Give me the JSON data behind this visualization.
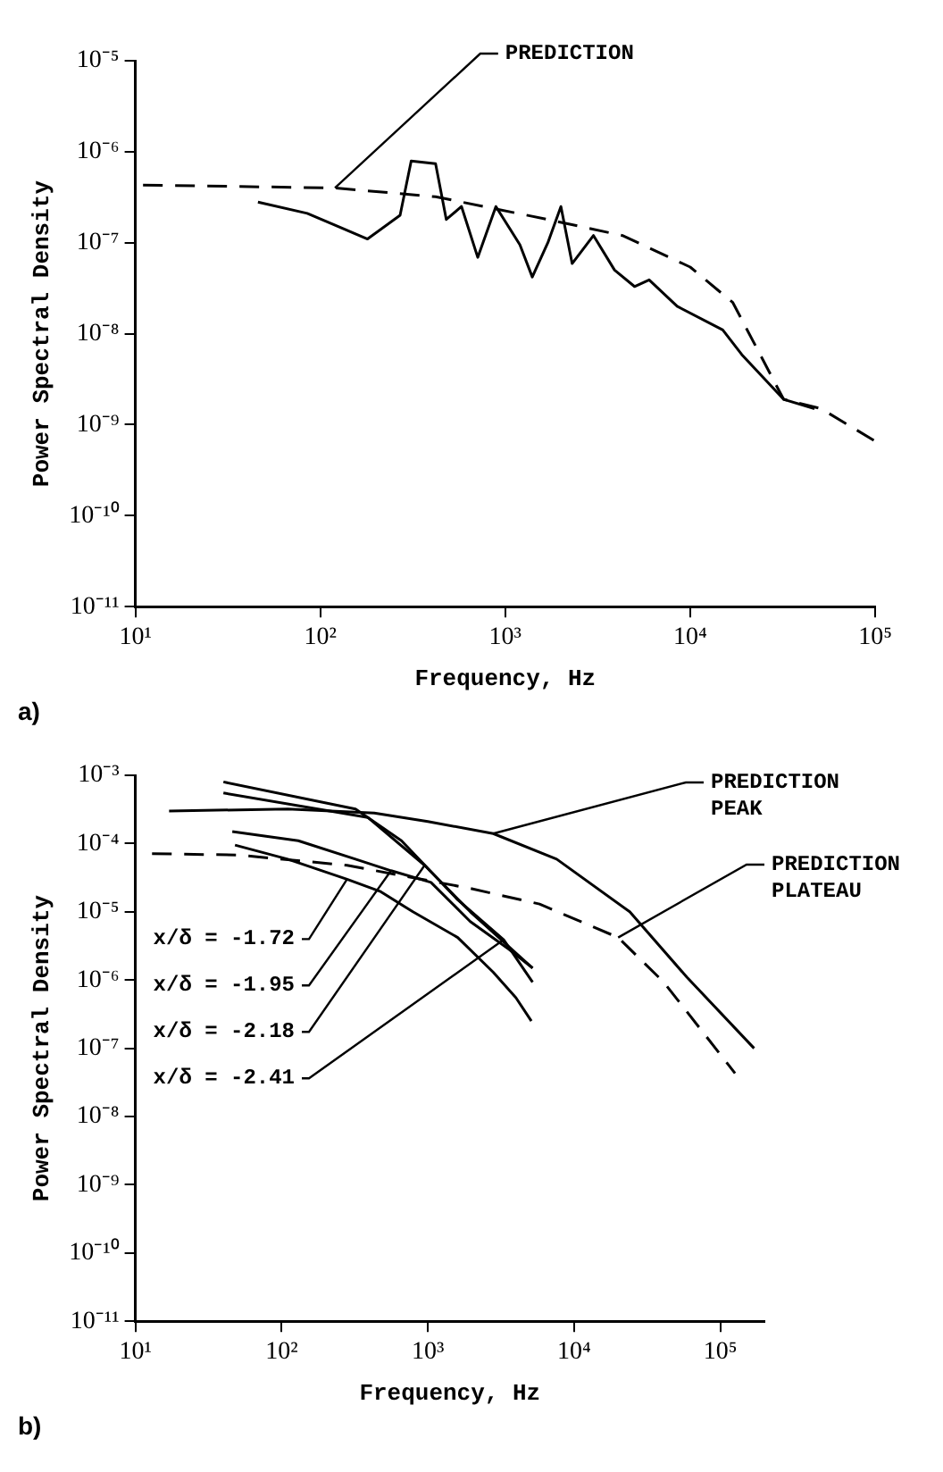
{
  "chart_data": [
    {
      "type": "line",
      "xlabel": "Frequency, Hz",
      "ylabel": "Power Spectral Density",
      "log": "xy",
      "grid": false,
      "legend": false,
      "xlim": [
        10,
        100000
      ],
      "ylim": [
        1e-11,
        1e-05
      ],
      "xticks": [
        {
          "value": 10,
          "label": "10¹"
        },
        {
          "value": 100,
          "label": "10²"
        },
        {
          "value": 1000,
          "label": "10³"
        },
        {
          "value": 10000,
          "label": "10⁴"
        },
        {
          "value": 100000,
          "label": "10⁵"
        }
      ],
      "yticks": [
        {
          "value": 1e-11,
          "label": "10⁻¹¹"
        },
        {
          "value": 1e-10,
          "label": "10⁻¹⁰"
        },
        {
          "value": 1e-09,
          "label": "10⁻⁹"
        },
        {
          "value": 1e-08,
          "label": "10⁻⁸"
        },
        {
          "value": 1e-07,
          "label": "10⁻⁷"
        },
        {
          "value": 1e-06,
          "label": "10⁻⁶"
        },
        {
          "value": 1e-05,
          "label": "10⁻⁵"
        }
      ],
      "series": [
        {
          "color": "#000000",
          "line_style": "solid",
          "x": [
            46,
            85,
            180,
            270,
            310,
            420,
            480,
            580,
            710,
            890,
            1200,
            1400,
            1700,
            2000,
            2300,
            3000,
            3900,
            5000,
            6000,
            8500,
            15000,
            19000,
            32000,
            47000
          ],
          "values": [
            2.8e-07,
            2.1e-07,
            1.1e-07,
            2e-07,
            7.9e-07,
            7.4e-07,
            1.8e-07,
            2.5e-07,
            6.9e-08,
            2.5e-07,
            9.5e-08,
            4.2e-08,
            1e-07,
            2.5e-07,
            5.9e-08,
            1.2e-07,
            5e-08,
            3.3e-08,
            3.9e-08,
            2e-08,
            1.1e-08,
            5.9e-09,
            1.9e-09,
            1.5e-09
          ]
        },
        {
          "name": "PREDICTION",
          "color": "#000000",
          "line_style": "dashed",
          "x": [
            11,
            120,
            420,
            1700,
            4300,
            10000,
            17000,
            32000,
            51000,
            100000
          ],
          "values": [
            4.3e-07,
            4e-07,
            3.2e-07,
            1.8e-07,
            1.2e-07,
            5.4e-08,
            2.2e-08,
            1.9e-09,
            1.5e-09,
            6.6e-10
          ]
        }
      ],
      "annotations": [
        "a)"
      ]
    },
    {
      "type": "line",
      "xlabel": "Frequency, Hz",
      "ylabel": "Power Spectral Density",
      "log": "xy",
      "grid": false,
      "legend": false,
      "xlim": [
        10,
        200000
      ],
      "ylim": [
        1e-11,
        0.001
      ],
      "xticks": [
        {
          "value": 10,
          "label": "10¹"
        },
        {
          "value": 100,
          "label": "10²"
        },
        {
          "value": 1000,
          "label": "10³"
        },
        {
          "value": 10000,
          "label": "10⁴"
        },
        {
          "value": 100000,
          "label": "10⁵"
        }
      ],
      "yticks": [
        {
          "value": 1e-11,
          "label": "10⁻¹¹"
        },
        {
          "value": 1e-10,
          "label": "10⁻¹⁰"
        },
        {
          "value": 1e-09,
          "label": "10⁻⁹"
        },
        {
          "value": 1e-08,
          "label": "10⁻⁸"
        },
        {
          "value": 1e-07,
          "label": "10⁻⁷"
        },
        {
          "value": 1e-06,
          "label": "10⁻⁶"
        },
        {
          "value": 1e-05,
          "label": "10⁻⁵"
        },
        {
          "value": 0.0001,
          "label": "10⁻⁴"
        },
        {
          "value": 0.001,
          "label": "10⁻³"
        }
      ],
      "series": [
        {
          "name": "PREDICTION PEAK",
          "color": "#000000",
          "line_style": "solid",
          "x": [
            17,
            110,
            430,
            1000,
            2800,
            7600,
            24000,
            59000,
            170000
          ],
          "values": [
            0.0003,
            0.00032,
            0.00028,
            0.00021,
            0.00014,
            5.9e-05,
            1e-05,
            1.1e-06,
            1e-07
          ]
        },
        {
          "name": "PREDICTION PLATEAU",
          "color": "#000000",
          "line_style": "dashed",
          "x": [
            13,
            50,
            280,
            1950,
            5800,
            20000,
            41000,
            126000
          ],
          "values": [
            7.1e-05,
            6.8e-05,
            4.8e-05,
            2.2e-05,
            1.3e-05,
            4.2e-06,
            9.3e-07,
            4.3e-08
          ]
        },
        {
          "name": "x/δ = -1.72",
          "color": "#000000",
          "line_style": "solid",
          "x": [
            48,
            110,
            280,
            470,
            790,
            1600,
            2800,
            4000,
            5100
          ],
          "values": [
            9.5e-05,
            5.9e-05,
            3e-05,
            2e-05,
            1e-05,
            4.2e-06,
            1.3e-06,
            5.5e-07,
            2.5e-07
          ]
        },
        {
          "name": "x/δ = -1.95",
          "color": "#000000",
          "line_style": "solid",
          "x": [
            46,
            130,
            320,
            560,
            1050,
            1950,
            3600,
            5200
          ],
          "values": [
            0.00015,
            0.00011,
            5.9e-05,
            4e-05,
            2.7e-05,
            7.2e-06,
            2.8e-06,
            1.5e-06
          ]
        },
        {
          "name": "x/δ = -2.18",
          "color": "#000000",
          "line_style": "solid",
          "x": [
            40,
            390,
            950,
            1950,
            5200
          ],
          "values": [
            0.00055,
            0.00024,
            4.8e-05,
            1e-05,
            1.5e-06
          ]
        },
        {
          "name": "x/δ = -2.41",
          "color": "#000000",
          "line_style": "solid",
          "x": [
            40,
            320,
            660,
            1600,
            3300,
            5200
          ],
          "values": [
            0.0008,
            0.00032,
            0.00011,
            1.5e-05,
            3.9e-06,
            9.3e-07
          ]
        }
      ],
      "annotations": [
        "b)"
      ]
    }
  ]
}
